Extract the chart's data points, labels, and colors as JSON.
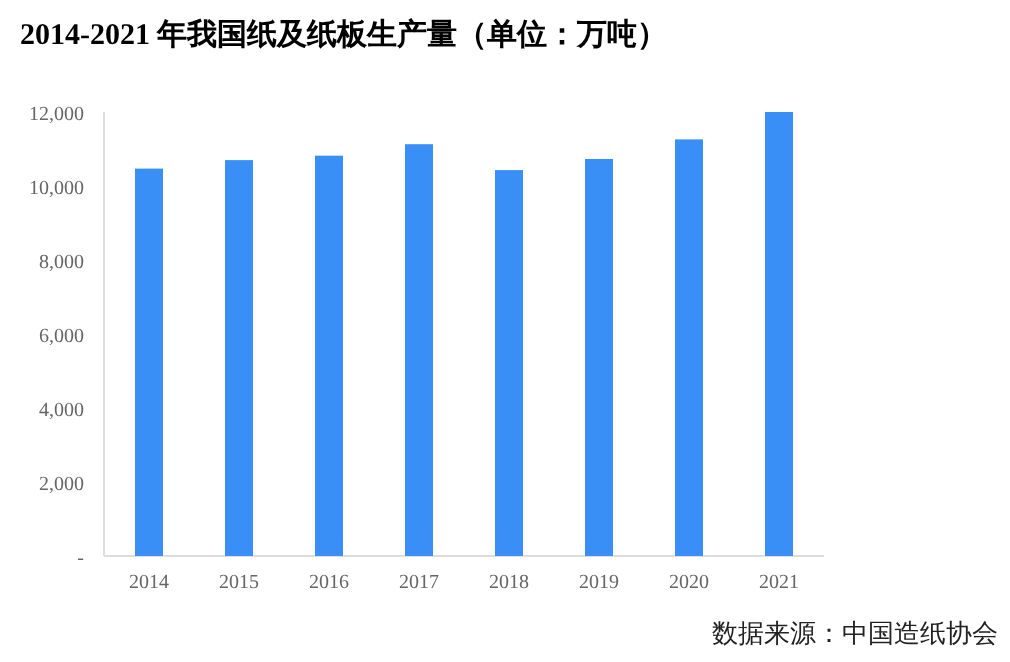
{
  "chart_data": {
    "type": "bar",
    "title": "2014-2021 年我国纸及纸板生产量（单位：万吨）",
    "categories": [
      "2014",
      "2015",
      "2016",
      "2017",
      "2018",
      "2019",
      "2020",
      "2021"
    ],
    "values": [
      10470,
      10700,
      10820,
      11130,
      10430,
      10730,
      11260,
      12000
    ],
    "color": "#3a8ff7",
    "ylim": [
      0,
      12000
    ],
    "yticks": [
      {
        "value": 0,
        "label": "-"
      },
      {
        "value": 2000,
        "label": "2,000"
      },
      {
        "value": 4000,
        "label": "4,000"
      },
      {
        "value": 6000,
        "label": "6,000"
      },
      {
        "value": 8000,
        "label": "8,000"
      },
      {
        "value": 10000,
        "label": "10,000"
      },
      {
        "value": 12000,
        "label": "12,000"
      }
    ],
    "grid": false,
    "annotations": [
      "数据来源：中国造纸协会"
    ]
  }
}
